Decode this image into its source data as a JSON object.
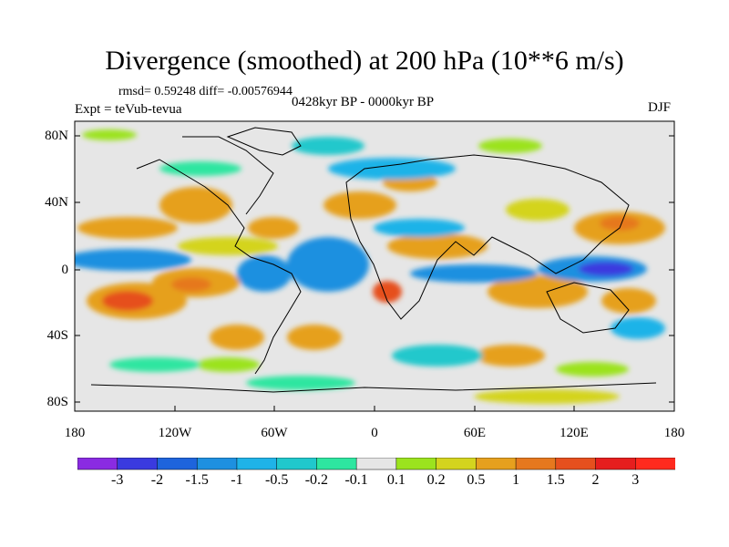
{
  "title": "Divergence (smoothed) at 200 hPa (10**6 m/s)",
  "stats": "rmsd= 0.59248 diff= -0.00576944",
  "experiment": "Expt = teVub-tevua",
  "period": "0428kyr BP - 0000kyr BP",
  "season": "DJF",
  "lat_ticks": [
    "80N",
    "40N",
    "0",
    "40S",
    "80S"
  ],
  "lon_ticks": [
    "180",
    "120W",
    "60W",
    "0",
    "60E",
    "120E",
    "180"
  ],
  "colorbar": {
    "labels": [
      "-3",
      "-2",
      "-1.5",
      "-1",
      "-0.5",
      "-0.2",
      "-0.1",
      "0.1",
      "0.2",
      "0.5",
      "1",
      "1.5",
      "2",
      "3"
    ],
    "colors": [
      "#8a2be2",
      "#3a3adf",
      "#1e64dc",
      "#1e90e0",
      "#1fb3e8",
      "#20c8cc",
      "#2ee6a0",
      "#e6e6e6",
      "#9be31e",
      "#d4d41e",
      "#e6a01e",
      "#e6781e",
      "#e6501e",
      "#e61e1e",
      "#ff2a1e"
    ]
  },
  "legend_colors": {
    "strong_negative": "#3a3adf",
    "negative": "#1fb3e8",
    "neutral": "#e6e6e6",
    "positive": "#e6a01e",
    "strong_positive": "#e61e1e"
  }
}
